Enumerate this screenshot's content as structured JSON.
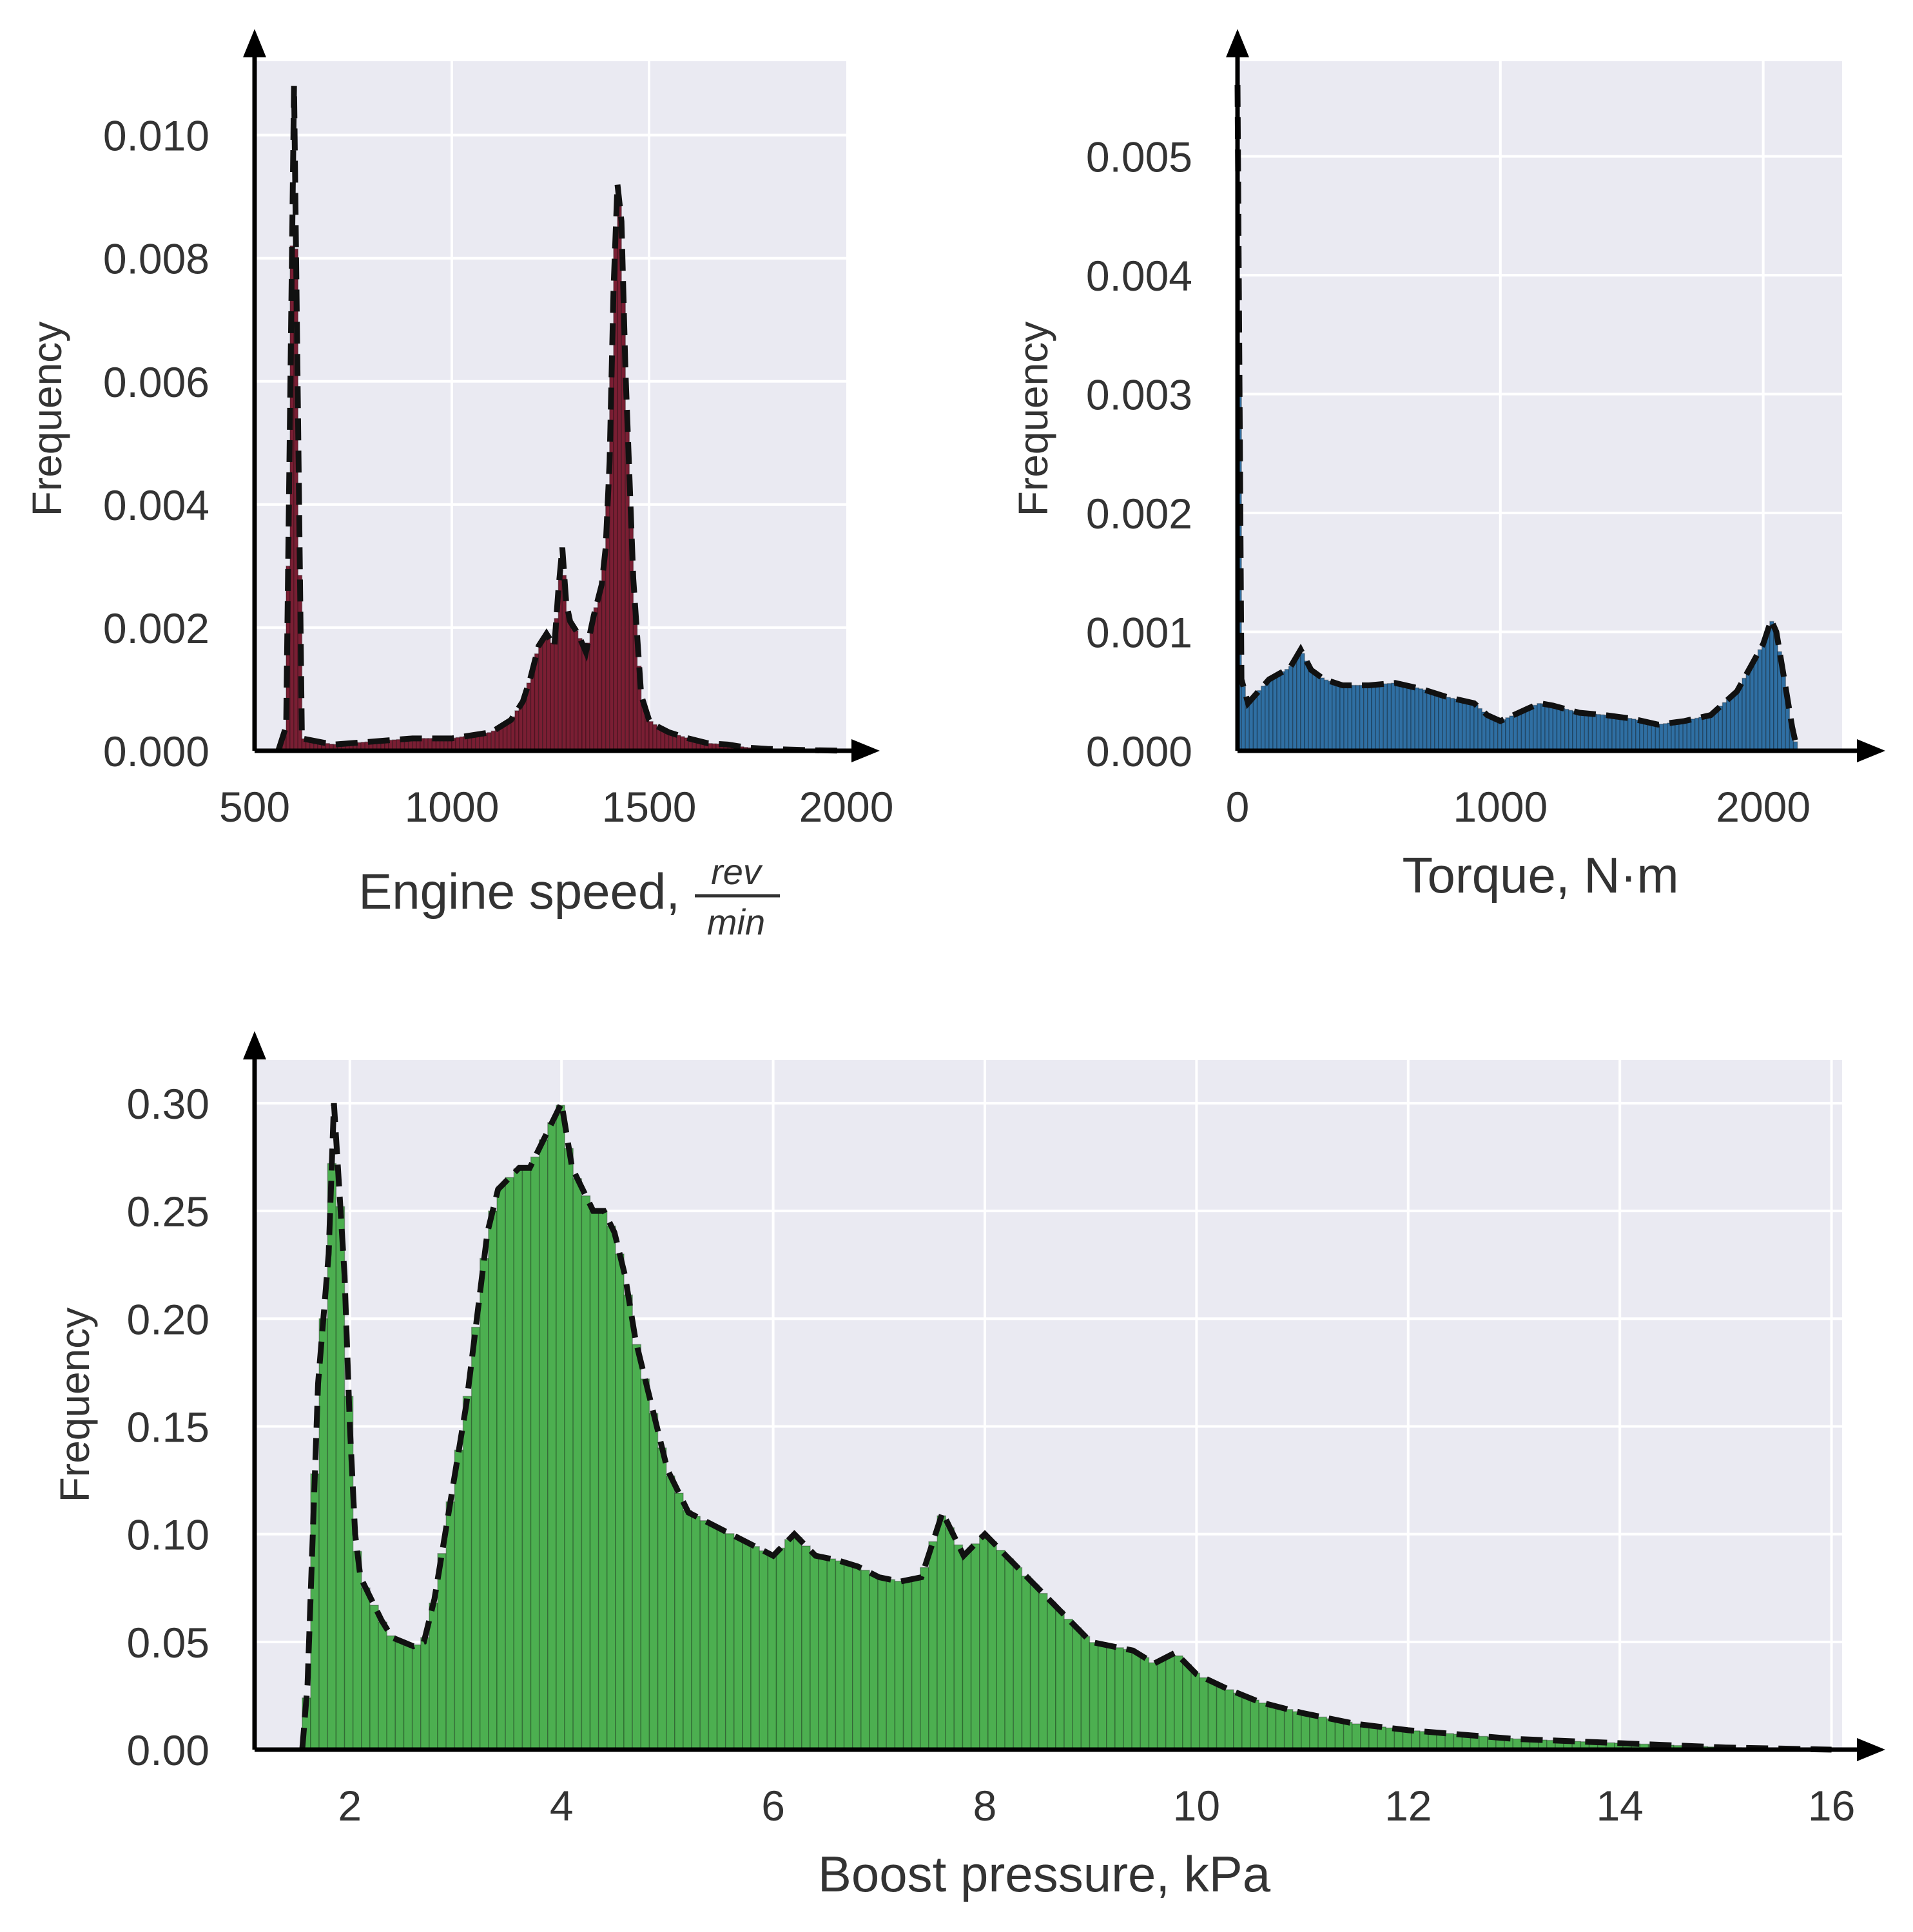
{
  "chart_data": [
    {
      "id": "engine",
      "type": "bar",
      "title": "",
      "xlabel": "Engine speed,",
      "xlabel_frac_num": "rev",
      "xlabel_frac_den": "min",
      "ylabel": "Frequency",
      "xlim": [
        500,
        2000
      ],
      "ylim": [
        0,
        0.0112
      ],
      "xticks": [
        500,
        1000,
        1500,
        2000
      ],
      "xtick_labels": [
        "500",
        "1000",
        "1500",
        "2000"
      ],
      "yticks": [
        0.0,
        0.002,
        0.004,
        0.006,
        0.008,
        0.01
      ],
      "ytick_labels": [
        "0.000",
        "0.002",
        "0.004",
        "0.006",
        "0.008",
        "0.010"
      ],
      "bar_color": "#7a1e33",
      "bin_width": 10,
      "x": [
        560,
        580,
        600,
        620,
        700,
        800,
        900,
        1000,
        1100,
        1150,
        1180,
        1200,
        1220,
        1240,
        1260,
        1270,
        1280,
        1290,
        1300,
        1320,
        1340,
        1360,
        1380,
        1390,
        1400,
        1410,
        1420,
        1430,
        1440,
        1460,
        1480,
        1500,
        1520,
        1550,
        1600,
        1650,
        1700,
        1750,
        1800,
        1900,
        2000
      ],
      "y": [
        0,
        0.0004,
        0.0108,
        0.0002,
        0.0001,
        0.00015,
        0.0002,
        0.0002,
        0.0003,
        0.0005,
        0.0008,
        0.0012,
        0.0017,
        0.0019,
        0.0017,
        0.0026,
        0.0033,
        0.0024,
        0.0021,
        0.0019,
        0.0016,
        0.0022,
        0.0027,
        0.0033,
        0.0047,
        0.0075,
        0.0092,
        0.0086,
        0.0062,
        0.0028,
        0.0009,
        0.0005,
        0.0004,
        0.0003,
        0.0002,
        0.00012,
        0.0001,
        5e-05,
        3e-05,
        1e-05,
        0
      ],
      "density_line": {
        "style": "dashed",
        "color": "#111111"
      }
    },
    {
      "id": "torque",
      "type": "bar",
      "title": "",
      "xlabel": "Torque, N·m",
      "ylabel": "Frequency",
      "xlim": [
        0,
        2300
      ],
      "ylim": [
        0,
        0.0058
      ],
      "xticks": [
        0,
        1000,
        2000
      ],
      "xtick_labels": [
        "0",
        "1000",
        "2000"
      ],
      "yticks": [
        0.0,
        0.001,
        0.002,
        0.003,
        0.004,
        0.005
      ],
      "ytick_labels": [
        "0.000",
        "0.001",
        "0.002",
        "0.003",
        "0.004",
        "0.005"
      ],
      "bar_color": "#2f6fa3",
      "bin_width": 15,
      "x": [
        0,
        15,
        40,
        80,
        120,
        160,
        200,
        240,
        280,
        330,
        400,
        500,
        600,
        700,
        800,
        900,
        950,
        1000,
        1050,
        1100,
        1150,
        1200,
        1300,
        1400,
        1500,
        1600,
        1700,
        1800,
        1900,
        1950,
        2000,
        2030,
        2050,
        2080,
        2110,
        2130
      ],
      "y": [
        0.0056,
        0.0006,
        0.0004,
        0.0005,
        0.0006,
        0.00065,
        0.0007,
        0.00085,
        0.00068,
        0.0006,
        0.00055,
        0.00055,
        0.00057,
        0.00052,
        0.00045,
        0.0004,
        0.0003,
        0.00025,
        0.0003,
        0.00035,
        0.0004,
        0.00038,
        0.00032,
        0.0003,
        0.00027,
        0.00022,
        0.00025,
        0.0003,
        0.0005,
        0.0007,
        0.0009,
        0.0011,
        0.001,
        0.0006,
        0.0002,
        0
      ],
      "density_line": {
        "style": "dashed",
        "color": "#111111"
      }
    },
    {
      "id": "boost",
      "type": "bar",
      "title": "",
      "xlabel": "Boost pressure, kPa",
      "ylabel": "Frequency",
      "xlim": [
        1.1,
        16.1
      ],
      "ylim": [
        0,
        0.32
      ],
      "xticks": [
        2,
        4,
        6,
        8,
        10,
        12,
        14,
        16
      ],
      "xtick_labels": [
        "2",
        "4",
        "6",
        "8",
        "10",
        "12",
        "14",
        "16"
      ],
      "yticks": [
        0.0,
        0.05,
        0.1,
        0.15,
        0.2,
        0.25,
        0.3
      ],
      "ytick_labels": [
        "0.00",
        "0.05",
        "0.10",
        "0.15",
        "0.20",
        "0.25",
        "0.30"
      ],
      "bar_color": "#4caf50",
      "bin_width": 0.08,
      "x": [
        1.55,
        1.6,
        1.7,
        1.8,
        1.85,
        1.9,
        1.95,
        2.0,
        2.05,
        2.1,
        2.15,
        2.2,
        2.3,
        2.4,
        2.5,
        2.6,
        2.7,
        2.8,
        2.9,
        3.0,
        3.1,
        3.2,
        3.3,
        3.4,
        3.5,
        3.6,
        3.7,
        3.8,
        3.9,
        4.0,
        4.1,
        4.2,
        4.3,
        4.4,
        4.5,
        4.6,
        4.7,
        4.8,
        4.9,
        5.0,
        5.2,
        5.4,
        5.6,
        5.8,
        6.0,
        6.2,
        6.4,
        6.6,
        6.8,
        7.0,
        7.2,
        7.4,
        7.6,
        7.8,
        8.0,
        8.2,
        8.4,
        8.6,
        8.8,
        9.0,
        9.2,
        9.4,
        9.6,
        9.8,
        10.0,
        10.3,
        10.6,
        11.0,
        11.5,
        12.0,
        12.5,
        13.0,
        13.5,
        14.0,
        14.5,
        15.0,
        15.5,
        16.0
      ],
      "y": [
        0,
        0.03,
        0.17,
        0.23,
        0.3,
        0.26,
        0.22,
        0.15,
        0.1,
        0.08,
        0.075,
        0.07,
        0.06,
        0.052,
        0.05,
        0.048,
        0.05,
        0.07,
        0.1,
        0.13,
        0.16,
        0.2,
        0.24,
        0.26,
        0.265,
        0.27,
        0.27,
        0.28,
        0.29,
        0.3,
        0.27,
        0.26,
        0.25,
        0.25,
        0.24,
        0.22,
        0.19,
        0.17,
        0.15,
        0.13,
        0.11,
        0.105,
        0.1,
        0.095,
        0.09,
        0.1,
        0.09,
        0.088,
        0.085,
        0.08,
        0.078,
        0.08,
        0.11,
        0.09,
        0.1,
        0.09,
        0.08,
        0.07,
        0.06,
        0.05,
        0.048,
        0.046,
        0.04,
        0.045,
        0.035,
        0.028,
        0.022,
        0.017,
        0.012,
        0.009,
        0.007,
        0.005,
        0.004,
        0.003,
        0.002,
        0.001,
        0.0005,
        0
      ],
      "density_line": {
        "style": "dashed",
        "color": "#111111"
      }
    }
  ]
}
